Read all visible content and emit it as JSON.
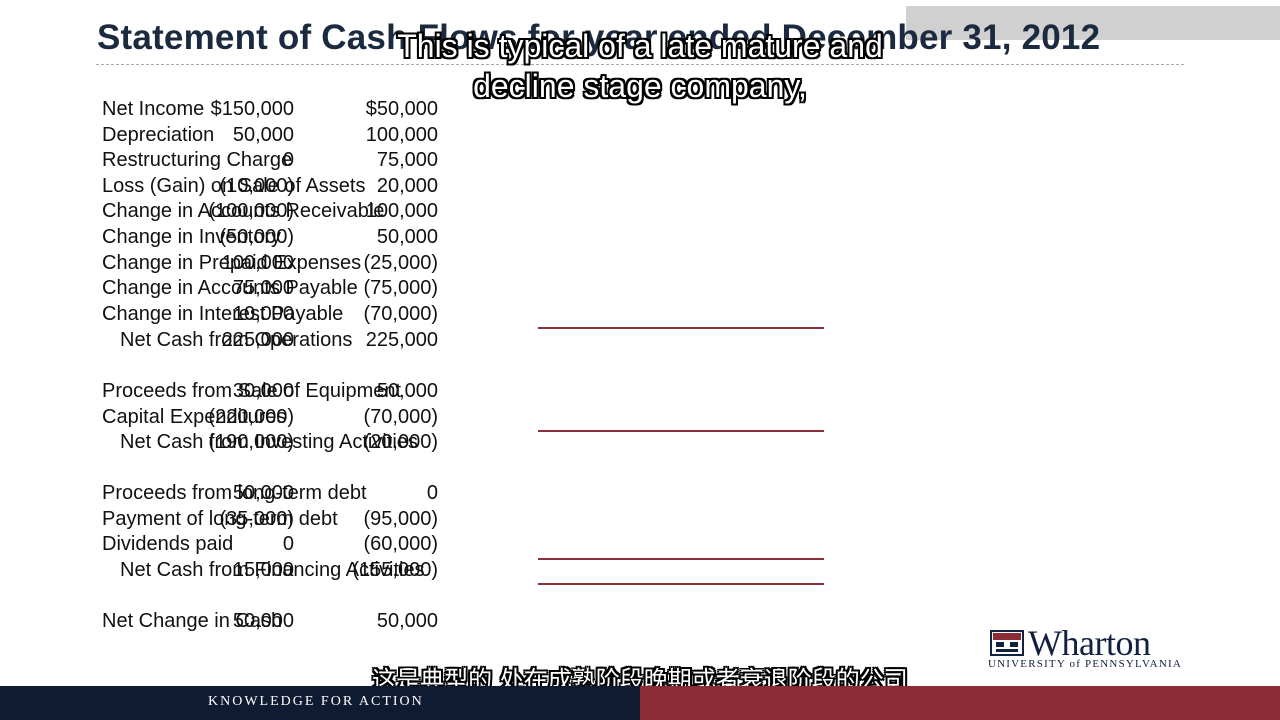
{
  "slide": {
    "title": "Statement of Cash Flows for year ended December 31, 2012",
    "rows": [
      {
        "label": "Net Income",
        "v1": "$150,000",
        "v2": "$50,000",
        "sub": false
      },
      {
        "label": "Depreciation",
        "v1": "50,000",
        "v2": "100,000",
        "sub": false
      },
      {
        "label": "Restructuring Charge",
        "v1": "0",
        "v2": "75,000",
        "sub": false
      },
      {
        "label": "Loss (Gain) on Sale of Assets",
        "v1": "(10,000)",
        "v2": "20,000",
        "sub": false
      },
      {
        "label": "Change in Accounts Receivable",
        "v1": "(100,000)",
        "v2": "100,000",
        "sub": false
      },
      {
        "label": "Change in Inventory",
        "v1": "(50,000)",
        "v2": "50,000",
        "sub": false
      },
      {
        "label": "Change in Prepaid Expenses",
        "v1": "100,000",
        "v2": "(25,000)",
        "sub": false
      },
      {
        "label": "Change in Accounts Payable",
        "v1": "75,000",
        "v2": "(75,000)",
        "sub": false
      },
      {
        "label": "Change in Interest Payable",
        "v1": "10,000",
        "v2": "(70,000)",
        "sub": false
      },
      {
        "label": "Net Cash from Operations",
        "v1": "225,000",
        "v2": "225,000",
        "sub": true
      },
      {
        "label": "Proceeds from Sale of Equipment",
        "v1": "30,000",
        "v2": "50,000",
        "sub": false
      },
      {
        "label": "Capital Expenditures",
        "v1": "(220,000)",
        "v2": "(70,000)",
        "sub": false
      },
      {
        "label": "Net Cash from Investing Activities",
        "v1": "(190,000)",
        "v2": "(20,000)",
        "sub": true
      },
      {
        "label": "Proceeds from long-term debt",
        "v1": "50,000",
        "v2": "0",
        "sub": false
      },
      {
        "label": "Payment of long-term debt",
        "v1": "(35,000)",
        "v2": "(95,000)",
        "sub": false
      },
      {
        "label": "Dividends paid",
        "v1": "0",
        "v2": "(60,000)",
        "sub": false
      },
      {
        "label": "Net Cash from Financing Activities",
        "v1": "15,000",
        "v2": "(155,000)",
        "sub": true
      },
      {
        "label": "Net Change in Cash",
        "v1": "50,000",
        "v2": "50,000",
        "sub": false
      }
    ]
  },
  "subtitles": {
    "en_line1": "This is typical of a late mature and",
    "en_line2": "decline stage company,",
    "zh": "这是典型的 处在成熟阶段晚期或者衰退阶段的公司"
  },
  "branding": {
    "logo_word": "Wharton",
    "logo_sub": "UNIVERSITY of PENNSYLVANIA",
    "footer_tagline": "KNOWLEDGE FOR ACTION"
  },
  "colors": {
    "accent_rule": "#8b2f3c",
    "footer_navy": "#0f1b33",
    "footer_maroon": "#8b2b36",
    "title_text": "#1b2a3e"
  }
}
